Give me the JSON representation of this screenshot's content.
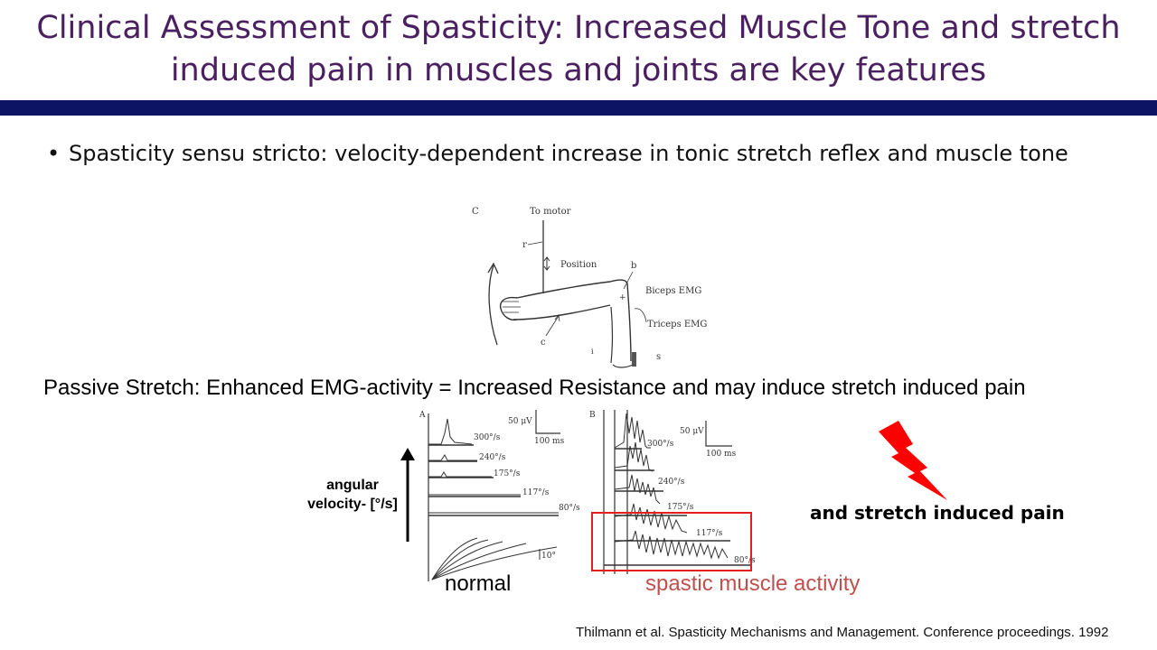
{
  "slide": {
    "title": "Clinical Assessment of Spasticity: Increased Muscle Tone and stretch induced pain in muscles and joints are key features",
    "bullet": "Spasticity sensu stricto: velocity-dependent increase in tonic stretch reflex and muscle tone",
    "passive_stretch": "Passive Stretch: Enhanced EMG-activity = Increased Resistance and may induce stretch induced pain",
    "angular_velocity_label": "angular velocity- [°/s]",
    "normal_label": "normal",
    "spastic_label": "spastic muscle activity",
    "pain_label": "and stretch induced pain",
    "citation": "Thilmann et al. Spasticity Mechanisms and Management. Conference proceedings. 1992"
  },
  "arm_figure": {
    "panel": "C",
    "to_motor": "To motor",
    "position": "Position",
    "biceps": "Biceps EMG",
    "triceps": "Triceps EMG",
    "letters": {
      "r": "r",
      "b": "b",
      "c": "c",
      "s": "s"
    }
  },
  "emg_normal": {
    "panel": "A",
    "scale_uv": "50 μV",
    "scale_ms": "100 ms",
    "velocities": [
      "300°/s",
      "240°/s",
      "175°/s",
      "117°/s",
      "80°/s"
    ],
    "angle_scale": "10°"
  },
  "emg_spastic": {
    "panel": "B",
    "scale_uv": "50 μV",
    "scale_ms": "100 ms",
    "velocities": [
      "300°/s",
      "240°/s",
      "175°/s",
      "117°/s",
      "80°/s"
    ]
  },
  "colors": {
    "title": "#4a2060",
    "title_bar": "#0d1463",
    "highlight_box": "#e02020",
    "spastic_text": "#c0504d",
    "lightning": "#ff0000"
  },
  "icons": {
    "lightning": "lightning-bolt-icon",
    "arrow": "arrow-up-icon"
  }
}
